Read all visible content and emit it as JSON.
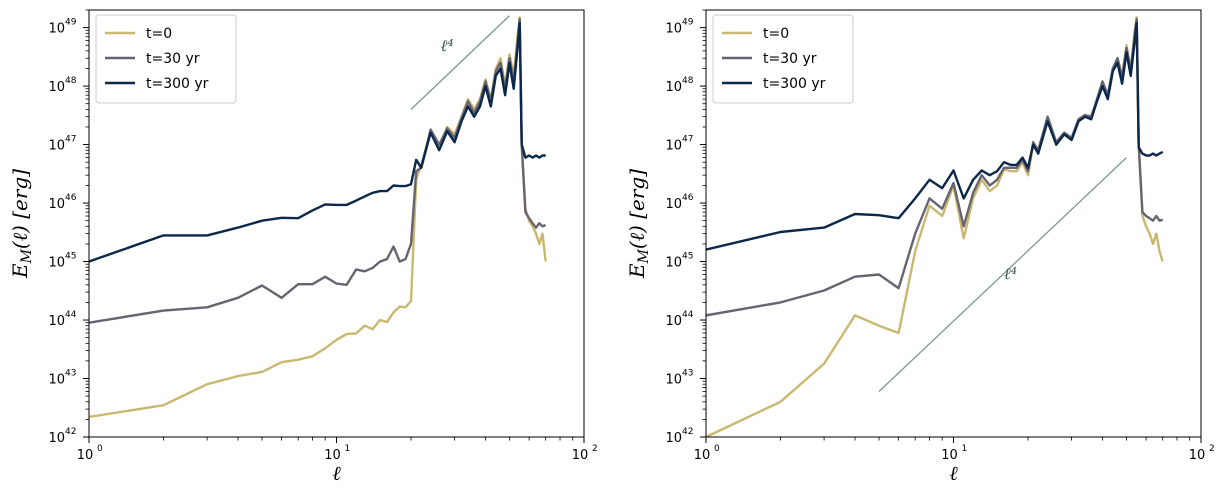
{
  "chart_data": [
    {
      "type": "line",
      "title": "",
      "xlabel": "ℓ",
      "ylabel": "E_M(ℓ) [erg]",
      "xscale": "log",
      "yscale": "log",
      "xlim": [
        1,
        100
      ],
      "ylim": [
        1e+42,
        2e+49
      ],
      "grid": false,
      "legend_loc": "upper-left",
      "series": [
        {
          "name": "t=0",
          "color": "#c9b86f",
          "x": [
            1,
            2,
            3,
            4,
            5,
            6,
            7,
            8,
            9,
            10,
            11,
            12,
            13,
            14,
            15,
            16,
            17,
            18,
            19,
            20,
            21,
            22,
            24,
            26,
            28,
            30,
            32,
            34,
            36,
            38,
            40,
            42,
            44,
            46,
            48,
            50,
            52,
            54,
            55,
            56,
            58,
            60,
            62,
            64,
            66,
            68,
            70
          ],
          "y": [
            2.2e+42,
            3.5e+42,
            8e+42,
            1.1e+43,
            1.3e+43,
            1.9e+43,
            2.1e+43,
            2.4e+43,
            3.3e+43,
            4.6e+43,
            5.8e+43,
            5.9e+43,
            8e+43,
            7e+43,
            1e+44,
            9.2e+43,
            1.35e+44,
            1.7e+44,
            1.65e+44,
            2.1e+44,
            2.5e+46,
            4.5e+46,
            1.6e+47,
            9e+46,
            2e+47,
            1.5e+47,
            3e+47,
            6e+47,
            4e+47,
            6e+47,
            1.3e+48,
            6e+47,
            2e+48,
            3e+48,
            1e+48,
            3.5e+48,
            1.5e+48,
            8e+48,
            1.5e+49,
            1e+47,
            8e+45,
            5e+45,
            4e+45,
            3e+45,
            2e+45,
            3e+45,
            1e+45
          ]
        },
        {
          "name": "t=30 yr",
          "color": "#676470",
          "x": [
            1,
            2,
            3,
            4,
            5,
            6,
            7,
            8,
            9,
            10,
            11,
            12,
            13,
            14,
            15,
            16,
            17,
            18,
            19,
            20,
            21,
            22,
            24,
            26,
            28,
            30,
            32,
            34,
            36,
            38,
            40,
            42,
            44,
            46,
            48,
            50,
            52,
            54,
            55,
            56,
            58,
            60,
            62,
            64,
            66,
            68,
            70
          ],
          "y": [
            9e+43,
            1.45e+44,
            1.65e+44,
            2.4e+44,
            3.9e+44,
            2.4e+44,
            4.1e+44,
            4.1e+44,
            5.5e+44,
            4.2e+44,
            4e+44,
            7.3e+44,
            6.8e+44,
            7.8e+44,
            1e+45,
            1.1e+45,
            1.8e+45,
            1e+45,
            1.1e+45,
            2e+45,
            3.5e+46,
            4e+46,
            1.8e+47,
            1e+47,
            1.9e+47,
            1.3e+47,
            2.8e+47,
            5.5e+47,
            3.5e+47,
            5.5e+47,
            1.2e+48,
            5.5e+47,
            1.8e+48,
            2.5e+48,
            9e+47,
            3e+48,
            1.2e+48,
            6e+48,
            1.4e+49,
            1e+47,
            7e+45,
            5.5e+45,
            4.5e+45,
            3.8e+45,
            4.5e+45,
            4e+45,
            4.2e+45
          ]
        },
        {
          "name": "t=300 yr",
          "color": "#0b2749",
          "x": [
            1,
            2,
            3,
            4,
            5,
            6,
            7,
            8,
            9,
            10,
            11,
            12,
            13,
            14,
            15,
            16,
            17,
            18,
            19,
            20,
            21,
            22,
            24,
            26,
            28,
            30,
            32,
            34,
            36,
            38,
            40,
            42,
            44,
            46,
            48,
            50,
            52,
            54,
            55,
            56,
            58,
            60,
            62,
            64,
            66,
            68,
            70
          ],
          "y": [
            1e+45,
            2.8e+45,
            2.8e+45,
            3.8e+45,
            5e+45,
            5.6e+45,
            5.5e+45,
            7.5e+45,
            9.5e+45,
            9.3e+45,
            9.3e+45,
            1.1e+46,
            1.3e+46,
            1.5e+46,
            1.6e+46,
            1.6e+46,
            2e+46,
            1.95e+46,
            1.95e+46,
            2.1e+46,
            5.5e+46,
            4e+46,
            1.6e+47,
            8e+46,
            1.7e+47,
            1.1e+47,
            2.5e+47,
            4.5e+47,
            3e+47,
            4.5e+47,
            1e+48,
            4.5e+47,
            1.5e+48,
            2e+48,
            7e+47,
            2.5e+48,
            9e+47,
            5e+48,
            1.2e+49,
            1e+47,
            6e+46,
            6.5e+46,
            6e+46,
            6.5e+46,
            6e+46,
            6.5e+46,
            6.5e+46
          ]
        }
      ],
      "annotations": [
        {
          "text": "ℓ⁴",
          "color": "#7b9a8e",
          "line": {
            "x": [
              20,
              50
            ],
            "y": [
              4e+47,
              1.6e+49
            ]
          },
          "label_at": {
            "x": 28,
            "y": 4e+48
          }
        }
      ],
      "xticks": {
        "labels": [
          "10",
          "10",
          "10"
        ],
        "exponents": [
          "0",
          "1",
          "2"
        ]
      },
      "yticks": {
        "labels": [
          "10",
          "10",
          "10",
          "10",
          "10",
          "10",
          "10",
          "10"
        ],
        "exponents": [
          "42",
          "43",
          "44",
          "45",
          "46",
          "47",
          "48",
          "49"
        ]
      }
    },
    {
      "type": "line",
      "title": "",
      "xlabel": "ℓ",
      "ylabel": "E_M(ℓ) [erg]",
      "xscale": "log",
      "yscale": "log",
      "xlim": [
        1,
        100
      ],
      "ylim": [
        1e+42,
        2e+49
      ],
      "grid": false,
      "legend_loc": "upper-left",
      "series": [
        {
          "name": "t=0",
          "color": "#c9b86f",
          "x": [
            1,
            2,
            3,
            4,
            5,
            6,
            7,
            8,
            9,
            10,
            11,
            12,
            13,
            14,
            15,
            16,
            17,
            18,
            19,
            20,
            21,
            22,
            24,
            26,
            28,
            30,
            32,
            34,
            36,
            38,
            40,
            42,
            44,
            46,
            48,
            50,
            52,
            54,
            55,
            56,
            58,
            60,
            62,
            64,
            66,
            68,
            70
          ],
          "y": [
            1e+42,
            4e+42,
            1.8e+43,
            1.2e+44,
            8e+43,
            6e+43,
            1.5e+45,
            9e+45,
            6e+45,
            2e+46,
            2.5e+45,
            1.2e+46,
            2.5e+46,
            1.6e+46,
            2e+46,
            3.8e+46,
            3.5e+46,
            3.5e+46,
            5e+46,
            3e+46,
            1e+47,
            7e+46,
            3e+47,
            1e+47,
            1.5e+47,
            1.2e+47,
            2.5e+47,
            3e+47,
            2.8e+47,
            6e+47,
            1.2e+48,
            7e+47,
            2e+48,
            3e+48,
            1.5e+48,
            5e+48,
            2e+48,
            9e+48,
            1.5e+49,
            1e+47,
            6e+45,
            4e+45,
            3e+45,
            2e+45,
            3e+45,
            1.5e+45,
            1e+45
          ]
        },
        {
          "name": "t=30 yr",
          "color": "#676470",
          "x": [
            1,
            2,
            3,
            4,
            5,
            6,
            7,
            8,
            9,
            10,
            11,
            12,
            13,
            14,
            15,
            16,
            17,
            18,
            19,
            20,
            21,
            22,
            24,
            26,
            28,
            30,
            32,
            34,
            36,
            38,
            40,
            42,
            44,
            46,
            48,
            50,
            52,
            54,
            55,
            56,
            58,
            60,
            62,
            64,
            66,
            68,
            70
          ],
          "y": [
            1.2e+44,
            2e+44,
            3.2e+44,
            5.5e+44,
            6e+44,
            3.5e+44,
            3e+45,
            1.2e+46,
            8e+45,
            2.2e+46,
            4e+45,
            1.5e+46,
            3e+46,
            2e+46,
            2.5e+46,
            4e+46,
            4e+46,
            4e+46,
            5.5e+46,
            3.5e+46,
            1.1e+47,
            8e+46,
            3e+47,
            1.1e+47,
            1.6e+47,
            1.3e+47,
            2.7e+47,
            3.2e+47,
            3e+47,
            6e+47,
            1.2e+48,
            7e+47,
            2e+48,
            3e+48,
            1.4e+48,
            4.5e+48,
            1.8e+48,
            8e+48,
            1.4e+49,
            1e+47,
            7e+45,
            6e+45,
            5.5e+45,
            5e+45,
            6e+45,
            5e+45,
            5.2e+45
          ]
        },
        {
          "name": "t=300 yr",
          "color": "#0b2749",
          "x": [
            1,
            2,
            3,
            4,
            5,
            6,
            7,
            8,
            9,
            10,
            11,
            12,
            13,
            14,
            15,
            16,
            17,
            18,
            19,
            20,
            21,
            22,
            24,
            26,
            28,
            30,
            32,
            34,
            36,
            38,
            40,
            42,
            44,
            46,
            48,
            50,
            52,
            54,
            55,
            56,
            58,
            60,
            62,
            64,
            66,
            68,
            70
          ],
          "y": [
            1.6e+45,
            3.2e+45,
            3.8e+45,
            6.5e+45,
            6.2e+45,
            5.5e+45,
            1.2e+46,
            2.5e+46,
            1.8e+46,
            3.6e+46,
            1.2e+46,
            2.5e+46,
            3.6e+46,
            3e+46,
            3.5e+46,
            5e+46,
            4.5e+46,
            4.5e+46,
            6e+46,
            4e+46,
            1e+47,
            7e+46,
            2.5e+47,
            1e+47,
            1.5e+47,
            1.2e+47,
            2.5e+47,
            3e+47,
            2.7e+47,
            5.5e+47,
            1e+48,
            6e+47,
            1.8e+48,
            2.5e+48,
            1.1e+48,
            3.8e+48,
            1.5e+48,
            6e+48,
            1.2e+49,
            9e+46,
            7e+46,
            6.5e+46,
            6.5e+46,
            7e+46,
            6.5e+46,
            7e+46,
            7.5e+46
          ]
        }
      ],
      "annotations": [
        {
          "text": "ℓ⁴",
          "color": "#7b9a8e",
          "line": {
            "x": [
              5,
              50
            ],
            "y": [
              6e+42,
              6e+46
            ]
          },
          "label_at": {
            "x": 17,
            "y": 5e+44
          }
        }
      ],
      "xticks": {
        "labels": [
          "10",
          "10",
          "10"
        ],
        "exponents": [
          "0",
          "1",
          "2"
        ]
      },
      "yticks": {
        "labels": [
          "10",
          "10",
          "10",
          "10",
          "10",
          "10",
          "10",
          "10"
        ],
        "exponents": [
          "42",
          "43",
          "44",
          "45",
          "46",
          "47",
          "48",
          "49"
        ]
      }
    }
  ]
}
